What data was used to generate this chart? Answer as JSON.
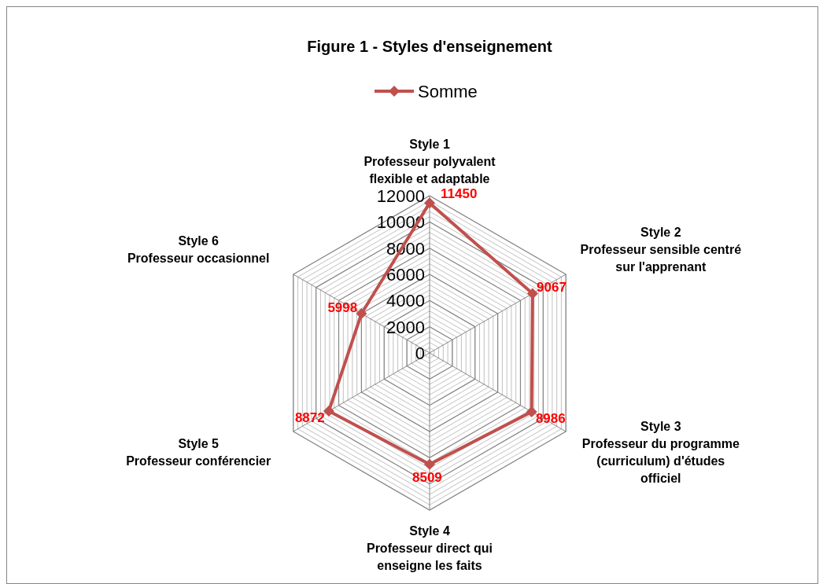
{
  "chart_data": {
    "type": "radar",
    "title": "Figure 1 - Styles d'enseignement",
    "categories": [
      "Style 1\nProfesseur polyvalent\nflexible et adaptable",
      "Style 2\nProfesseur sensible centré\nsur l'apprenant",
      "Style 3\nProfesseur du programme\n(curriculum) d'études\nofficiel",
      "Style 4\nProfesseur direct qui\nenseigne les faits",
      "Style 5\nProfesseur conférencier",
      "Style 6\nProfesseur occasionnel"
    ],
    "series": [
      {
        "name": "Somme",
        "color": "#c0504d",
        "values": [
          11450,
          9067,
          8986,
          8509,
          8872,
          5998
        ]
      }
    ],
    "ylim": [
      0,
      12000
    ],
    "yticks": [
      0,
      2000,
      4000,
      6000,
      8000,
      10000,
      12000
    ],
    "grid": true,
    "legend": "top",
    "marker": "diamond",
    "data_labels": true
  }
}
